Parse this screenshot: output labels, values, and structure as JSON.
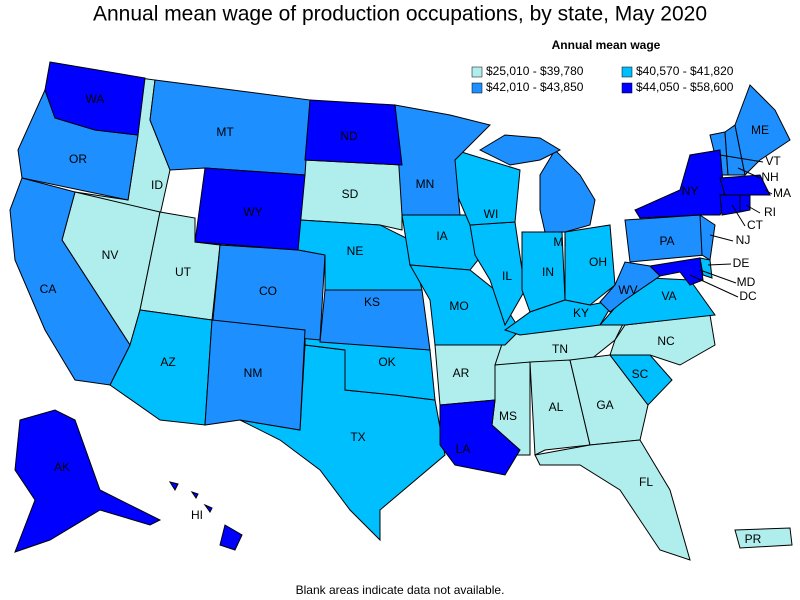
{
  "title": "Annual mean wage of production occupations, by state, May 2020",
  "legend": {
    "title": "Annual mean wage",
    "items": [
      {
        "label": "$25,010 - $39,780",
        "color": "#b0eeee",
        "states": [
          "ID",
          "NV",
          "UT",
          "SD",
          "AR",
          "TN",
          "MS",
          "AL",
          "GA",
          "FL",
          "NC",
          "PR"
        ]
      },
      {
        "label": "$40,570 - $41,820",
        "color": "#00bfff",
        "states": [
          "AZ",
          "TX",
          "OK",
          "NE",
          "IA",
          "MO",
          "IL",
          "WI",
          "IN",
          "OH",
          "KY",
          "VA",
          "SC",
          "DE"
        ]
      },
      {
        "label": "$42,010 - $43,850",
        "color": "#1e8fff",
        "states": [
          "OR",
          "CA",
          "MT",
          "CO",
          "NM",
          "KS",
          "MN",
          "MI",
          "PA",
          "WV",
          "NJ",
          "VT",
          "NH",
          "ME"
        ]
      },
      {
        "label": "$44,050 - $58,600",
        "color": "#0000ff",
        "states": [
          "WA",
          "WY",
          "ND",
          "LA",
          "NY",
          "MA",
          "CT",
          "RI",
          "MD",
          "AK",
          "HI",
          "DC"
        ]
      }
    ]
  },
  "footnote": "Blank areas indicate data not available."
}
